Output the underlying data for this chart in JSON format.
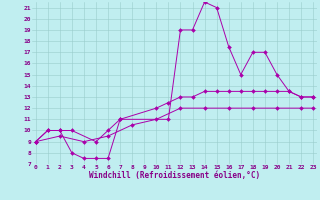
{
  "background_color": "#c0eef0",
  "line_color": "#aa00aa",
  "grid_color": "#99cccc",
  "line1_x": [
    0,
    1,
    2,
    3,
    4,
    5,
    6,
    7,
    11,
    12,
    13,
    14,
    15,
    16,
    17,
    18,
    19,
    20,
    21,
    22,
    23
  ],
  "line1_y": [
    9,
    10,
    10,
    8,
    7.5,
    7.5,
    7.5,
    11,
    11,
    19,
    19,
    21.5,
    21,
    17.5,
    15,
    17,
    17,
    15,
    13.5,
    13,
    13
  ],
  "line2_x": [
    0,
    1,
    2,
    3,
    5,
    6,
    7,
    10,
    11,
    12,
    13,
    14,
    15,
    16,
    17,
    18,
    19,
    20,
    21,
    22,
    23
  ],
  "line2_y": [
    9,
    10,
    10,
    10,
    9,
    10,
    11,
    12,
    12.5,
    13,
    13,
    13.5,
    13.5,
    13.5,
    13.5,
    13.5,
    13.5,
    13.5,
    13.5,
    13,
    13
  ],
  "line3_x": [
    0,
    2,
    4,
    6,
    8,
    10,
    12,
    14,
    16,
    18,
    20,
    22,
    23
  ],
  "line3_y": [
    9,
    9.5,
    9,
    9.5,
    10.5,
    11,
    12,
    12,
    12,
    12,
    12,
    12,
    12
  ],
  "xticks": [
    0,
    1,
    2,
    3,
    4,
    5,
    6,
    7,
    8,
    9,
    10,
    11,
    12,
    13,
    14,
    15,
    16,
    17,
    18,
    19,
    20,
    21,
    22,
    23
  ],
  "yticks": [
    7,
    8,
    9,
    10,
    11,
    12,
    13,
    14,
    15,
    16,
    17,
    18,
    19,
    20,
    21
  ],
  "xmin": -0.3,
  "xmax": 23.3,
  "ymin": 7,
  "ymax": 21.5,
  "xlabel": "Windchill (Refroidissement éolien,°C)",
  "font_color": "#880088",
  "tick_fontsize": 4.5,
  "xlabel_fontsize": 5.5,
  "marker_size": 2.0,
  "linewidth": 0.7
}
